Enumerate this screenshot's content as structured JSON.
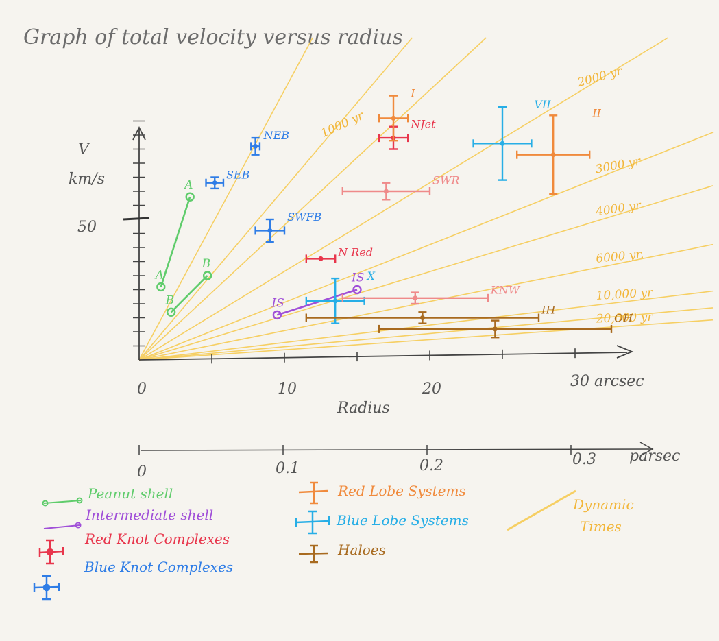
{
  "title": "Graph of total velocity versus radius",
  "colors": {
    "peanut": "#5fcc6b",
    "intermediate": "#a04fd8",
    "red_knot": "#e8364c",
    "blue_knot": "#2f7de6",
    "red_lobe": "#f08a3c",
    "blue_lobe": "#27aee6",
    "haloes": "#a86a1f",
    "dynamic": "#f6cf63",
    "faint_red": "#ef8a8a",
    "axis": "#444444"
  },
  "axes": {
    "y_label_line1": "V",
    "y_label_line2": "km/s",
    "y_tick_value": "50",
    "x_label": "Radius",
    "x_tick_labels": [
      "0",
      "10",
      "20",
      "30 arcsec"
    ],
    "parsec_tick_labels": [
      "0",
      "0.1",
      "0.2",
      "0.3"
    ],
    "parsec_unit": "parsec"
  },
  "legend": {
    "peanut": "Peanut shell",
    "intermediate": "Intermediate shell",
    "red_knot": "Red Knot Complexes",
    "blue_knot": "Blue Knot Complexes",
    "red_lobe": "Red Lobe Systems",
    "blue_lobe": "Blue Lobe Systems",
    "haloes": "Haloes",
    "dynamic_line1": "Dynamic",
    "dynamic_line2": "Times"
  },
  "chart_data": {
    "type": "scatter",
    "title": "Graph of total velocity versus radius",
    "xlabel": "Radius",
    "x_unit": "arcsec",
    "ylabel": "V km/s",
    "xlim": [
      0,
      33
    ],
    "ylim": [
      0,
      95
    ],
    "secondary_x": {
      "unit": "parsec",
      "ticks": [
        0,
        0.1,
        0.2,
        0.3
      ]
    },
    "grid": false,
    "legend_position": "bottom",
    "dynamic_time_lines": [
      {
        "label": "",
        "slope": 9.6
      },
      {
        "label": "1000 yr",
        "slope": 6.1
      },
      {
        "label": "",
        "slope": 4.8
      },
      {
        "label": "2000 yr",
        "slope": 3.15
      },
      {
        "label": "3000 yr",
        "slope": 2.05
      },
      {
        "label": "4000 yr",
        "slope": 1.57
      },
      {
        "label": "6000 yr.",
        "slope": 1.04
      },
      {
        "label": "10,000 yr",
        "slope": 0.62
      },
      {
        "label": "",
        "slope": 0.47
      },
      {
        "label": "20,000 yr",
        "slope": 0.36
      }
    ],
    "series": [
      {
        "name": "Peanut shell",
        "color_key": "peanut",
        "kind": "segment",
        "points": [
          {
            "label": "A",
            "x": 3.5,
            "y": 58
          },
          {
            "label": "A",
            "x": 1.5,
            "y": 26
          },
          {
            "label": "B",
            "x": 4.7,
            "y": 30
          },
          {
            "label": "B",
            "x": 2.2,
            "y": 17
          }
        ],
        "segments": [
          [
            0,
            1
          ],
          [
            2,
            3
          ]
        ]
      },
      {
        "name": "Intermediate shell",
        "color_key": "intermediate",
        "kind": "segment",
        "points": [
          {
            "label": "IS",
            "x": 9.5,
            "y": 16
          },
          {
            "label": "IS",
            "x": 15,
            "y": 25
          }
        ],
        "segments": [
          [
            0,
            1
          ]
        ]
      },
      {
        "name": "Red Knot Complexes",
        "color_key": "red_knot",
        "kind": "errorbar",
        "points": [
          {
            "label": "NJet",
            "x": 17.5,
            "y": 79,
            "xerr": 1,
            "yerr": 4
          },
          {
            "label": "N Red",
            "x": 12.5,
            "y": 36,
            "xerr": 1,
            "yerr": 0
          }
        ]
      },
      {
        "name": "Blue Knot Complexes",
        "color_key": "blue_knot",
        "kind": "errorbar",
        "points": [
          {
            "label": "NEB",
            "x": 8,
            "y": 76,
            "xerr": 0.3,
            "yerr": 3
          },
          {
            "label": "SEB",
            "x": 5.2,
            "y": 63,
            "xerr": 0.6,
            "yerr": 2
          },
          {
            "label": "SWFB",
            "x": 9,
            "y": 46,
            "xerr": 1,
            "yerr": 4
          }
        ]
      },
      {
        "name": "Red Lobe Systems",
        "color_key": "red_lobe",
        "kind": "errorbar",
        "points": [
          {
            "label": "I",
            "x": 17.5,
            "y": 86,
            "xerr": 1,
            "yerr": 8
          },
          {
            "label": "II",
            "x": 28.5,
            "y": 73,
            "xerr": 2.5,
            "yerr": 14
          }
        ]
      },
      {
        "name": "Blue Lobe Systems",
        "color_key": "blue_lobe",
        "kind": "errorbar",
        "points": [
          {
            "label": "VII",
            "x": 25,
            "y": 77,
            "xerr": 2,
            "yerr": 13
          },
          {
            "label": "X",
            "x": 13.5,
            "y": 21,
            "xerr": 2,
            "yerr": 8
          }
        ]
      },
      {
        "name": "Haloes",
        "color_key": "haloes",
        "kind": "errorbar",
        "points": [
          {
            "label": "IH",
            "x": 19.5,
            "y": 15,
            "xerr": 8,
            "yerr": 2
          },
          {
            "label": "OH",
            "x": 24.5,
            "y": 11,
            "xerr": 8,
            "yerr": 3
          }
        ]
      },
      {
        "name": "",
        "color_key": "faint_red",
        "kind": "errorbar",
        "points": [
          {
            "label": "SWR",
            "x": 17,
            "y": 60,
            "xerr": 3,
            "yerr": 3
          },
          {
            "label": "KNW",
            "x": 19,
            "y": 22,
            "xerr": 5,
            "yerr": 2
          }
        ]
      }
    ]
  }
}
